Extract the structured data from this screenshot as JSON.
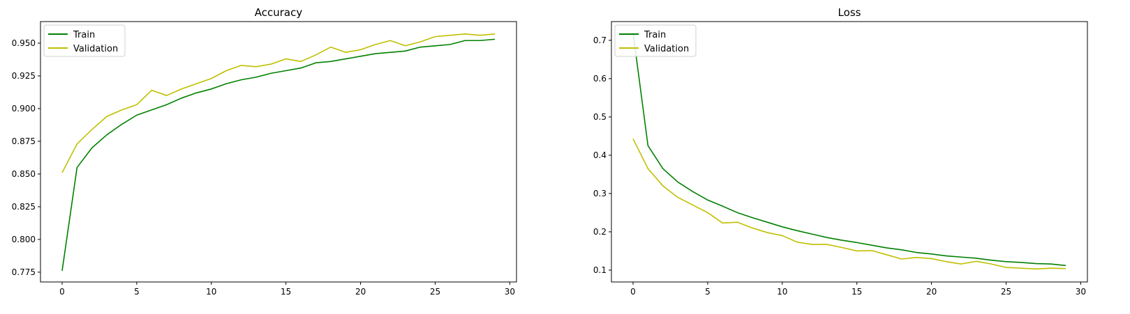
{
  "colors": {
    "train": "#008000",
    "validation": "#bfbf00"
  },
  "chart_data": [
    {
      "type": "line",
      "title": "Accuracy",
      "xlabel": "",
      "ylabel": "",
      "legend": "top-left",
      "grid": false,
      "xlim": [
        -1.45,
        30.45
      ],
      "ylim": [
        0.7675,
        0.9665
      ],
      "xticks": [
        0,
        5,
        10,
        15,
        20,
        25,
        30
      ],
      "yticks": [
        0.775,
        0.8,
        0.825,
        0.85,
        0.875,
        0.9,
        0.925,
        0.95
      ],
      "ytick_labels": [
        "0.775",
        "0.800",
        "0.825",
        "0.850",
        "0.875",
        "0.900",
        "0.925",
        "0.950"
      ],
      "x": [
        0,
        1,
        2,
        3,
        4,
        5,
        6,
        7,
        8,
        9,
        10,
        11,
        12,
        13,
        14,
        15,
        16,
        17,
        18,
        19,
        20,
        21,
        22,
        23,
        24,
        25,
        26,
        27,
        28,
        29
      ],
      "series": [
        {
          "name": "Train",
          "color": "#008000",
          "values": [
            0.776,
            0.855,
            0.87,
            0.88,
            0.888,
            0.895,
            0.899,
            0.903,
            0.908,
            0.912,
            0.915,
            0.919,
            0.922,
            0.924,
            0.927,
            0.929,
            0.931,
            0.935,
            0.936,
            0.938,
            0.94,
            0.942,
            0.943,
            0.944,
            0.947,
            0.948,
            0.949,
            0.952,
            0.952,
            0.953
          ]
        },
        {
          "name": "Validation",
          "color": "#bfbf00",
          "values": [
            0.851,
            0.873,
            0.884,
            0.894,
            0.899,
            0.903,
            0.914,
            0.91,
            0.915,
            0.919,
            0.923,
            0.929,
            0.933,
            0.932,
            0.934,
            0.938,
            0.936,
            0.941,
            0.947,
            0.943,
            0.945,
            0.949,
            0.952,
            0.948,
            0.951,
            0.955,
            0.956,
            0.957,
            0.956,
            0.957
          ]
        }
      ]
    },
    {
      "type": "line",
      "title": "Loss",
      "xlabel": "",
      "ylabel": "",
      "legend": "top-left",
      "grid": false,
      "xlim": [
        -1.45,
        30.45
      ],
      "ylim": [
        0.069,
        0.749
      ],
      "xticks": [
        0,
        5,
        10,
        15,
        20,
        25,
        30
      ],
      "yticks": [
        0.1,
        0.2,
        0.3,
        0.4,
        0.5,
        0.6,
        0.7
      ],
      "ytick_labels": [
        "0.1",
        "0.2",
        "0.3",
        "0.4",
        "0.5",
        "0.6",
        "0.7"
      ],
      "x": [
        0,
        1,
        2,
        3,
        4,
        5,
        6,
        7,
        8,
        9,
        10,
        11,
        12,
        13,
        14,
        15,
        16,
        17,
        18,
        19,
        20,
        21,
        22,
        23,
        24,
        25,
        26,
        27,
        28,
        29
      ],
      "series": [
        {
          "name": "Train",
          "color": "#008000",
          "values": [
            0.72,
            0.425,
            0.365,
            0.33,
            0.305,
            0.283,
            0.267,
            0.25,
            0.237,
            0.225,
            0.213,
            0.203,
            0.194,
            0.185,
            0.178,
            0.172,
            0.165,
            0.158,
            0.153,
            0.146,
            0.142,
            0.137,
            0.134,
            0.131,
            0.126,
            0.122,
            0.12,
            0.117,
            0.116,
            0.112
          ]
        },
        {
          "name": "Validation",
          "color": "#bfbf00",
          "values": [
            0.443,
            0.365,
            0.32,
            0.29,
            0.27,
            0.25,
            0.223,
            0.225,
            0.21,
            0.198,
            0.19,
            0.173,
            0.167,
            0.167,
            0.159,
            0.15,
            0.151,
            0.14,
            0.129,
            0.133,
            0.13,
            0.122,
            0.116,
            0.123,
            0.116,
            0.107,
            0.105,
            0.103,
            0.105,
            0.104
          ]
        }
      ]
    }
  ]
}
